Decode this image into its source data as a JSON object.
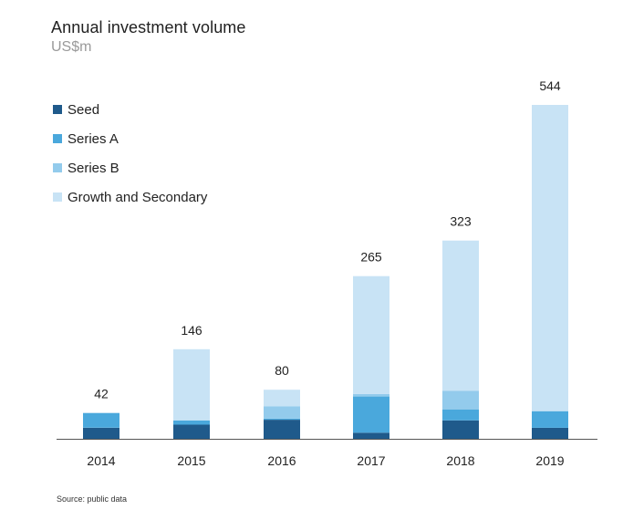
{
  "chart_data": {
    "type": "bar",
    "stacked": true,
    "title": "Annual investment volume",
    "subtitle": "US$m",
    "categories": [
      "2014",
      "2015",
      "2016",
      "2017",
      "2018",
      "2019"
    ],
    "series": [
      {
        "name": "Seed",
        "color": "#1f5a8b",
        "values": [
          18,
          23,
          31,
          10,
          30,
          18
        ]
      },
      {
        "name": "Series A",
        "color": "#4aa8dc",
        "values": [
          24,
          7,
          2,
          59,
          18,
          27
        ]
      },
      {
        "name": "Series B",
        "color": "#93cbec",
        "values": [
          0,
          0,
          20,
          4,
          30,
          0
        ]
      },
      {
        "name": "Growth and Secondary",
        "color": "#c8e3f5",
        "values": [
          0,
          116,
          27,
          192,
          245,
          499
        ]
      }
    ],
    "totals": [
      "42",
      "146",
      "80",
      "265",
      "323",
      "544"
    ],
    "ylim": [
      0,
      544
    ],
    "legend_position": "top-left",
    "source": "Source: public data"
  }
}
